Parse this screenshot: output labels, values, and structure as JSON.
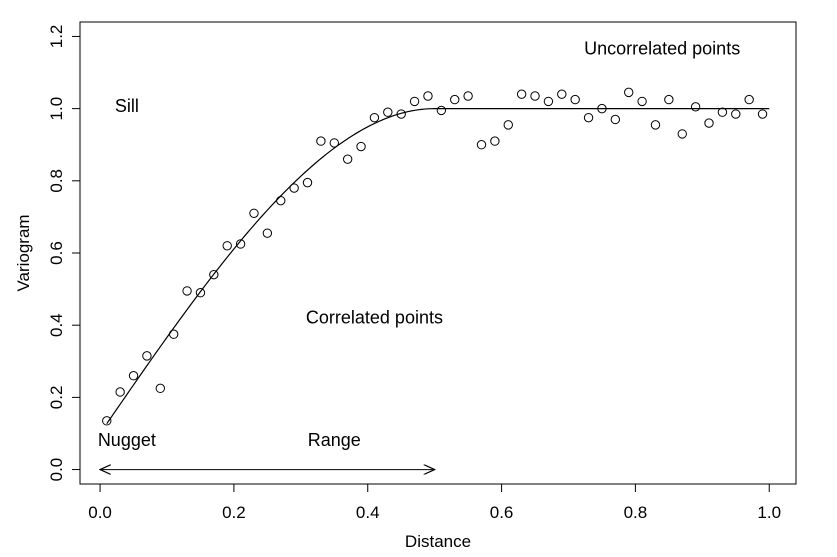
{
  "chart_data": {
    "type": "scatter",
    "title": "",
    "xlabel": "Distance",
    "ylabel": "Variogram",
    "xlim": [
      -0.03,
      1.04
    ],
    "ylim": [
      -0.04,
      1.24
    ],
    "x_ticks": [
      0.0,
      0.2,
      0.4,
      0.6,
      0.8,
      1.0
    ],
    "x_tick_labels": [
      "0.0",
      "0.2",
      "0.4",
      "0.6",
      "0.8",
      "1.0"
    ],
    "y_ticks": [
      0.0,
      0.2,
      0.4,
      0.6,
      0.8,
      1.0,
      1.2
    ],
    "y_tick_labels": [
      "0.0",
      "0.2",
      "0.4",
      "0.6",
      "0.8",
      "1.0",
      "1.2"
    ],
    "grid": false,
    "points": {
      "x": [
        0.01,
        0.03,
        0.05,
        0.07,
        0.09,
        0.11,
        0.13,
        0.15,
        0.17,
        0.19,
        0.21,
        0.23,
        0.25,
        0.27,
        0.29,
        0.31,
        0.33,
        0.35,
        0.37,
        0.39,
        0.41,
        0.43,
        0.45,
        0.47,
        0.49,
        0.51,
        0.53,
        0.55,
        0.57,
        0.59,
        0.61,
        0.63,
        0.65,
        0.67,
        0.69,
        0.71,
        0.73,
        0.75,
        0.77,
        0.79,
        0.81,
        0.83,
        0.85,
        0.87,
        0.89,
        0.91,
        0.93,
        0.95,
        0.97,
        0.99
      ],
      "y": [
        0.135,
        0.215,
        0.26,
        0.315,
        0.225,
        0.375,
        0.495,
        0.49,
        0.54,
        0.62,
        0.625,
        0.71,
        0.655,
        0.745,
        0.78,
        0.795,
        0.91,
        0.905,
        0.86,
        0.895,
        0.975,
        0.99,
        0.985,
        1.02,
        1.035,
        0.995,
        1.025,
        1.035,
        0.9,
        0.91,
        0.955,
        1.04,
        1.035,
        1.02,
        1.04,
        1.025,
        0.975,
        1.0,
        0.97,
        1.045,
        1.02,
        0.955,
        1.025,
        0.93,
        1.005,
        0.96,
        0.99,
        0.985,
        1.025,
        0.985
      ]
    },
    "model_curve": {
      "type": "spherical",
      "nugget": 0.1,
      "sill": 1.0,
      "range": 0.5,
      "x_start": 0.01,
      "x_end": 1.0
    },
    "range_arrow": {
      "x_from": 0.0,
      "x_to": 0.5,
      "y": 0.0
    },
    "annotations": {
      "sill": {
        "text": "Sill",
        "x": 0.04,
        "y": 0.99
      },
      "uncorrelated": {
        "text": "Uncorrelated points",
        "x": 0.84,
        "y": 1.15
      },
      "correlated": {
        "text": "Correlated points",
        "x": 0.41,
        "y": 0.405
      },
      "nugget": {
        "text": "Nugget",
        "x": 0.04,
        "y": 0.065
      },
      "range": {
        "text": "Range",
        "x": 0.35,
        "y": 0.065
      }
    }
  }
}
